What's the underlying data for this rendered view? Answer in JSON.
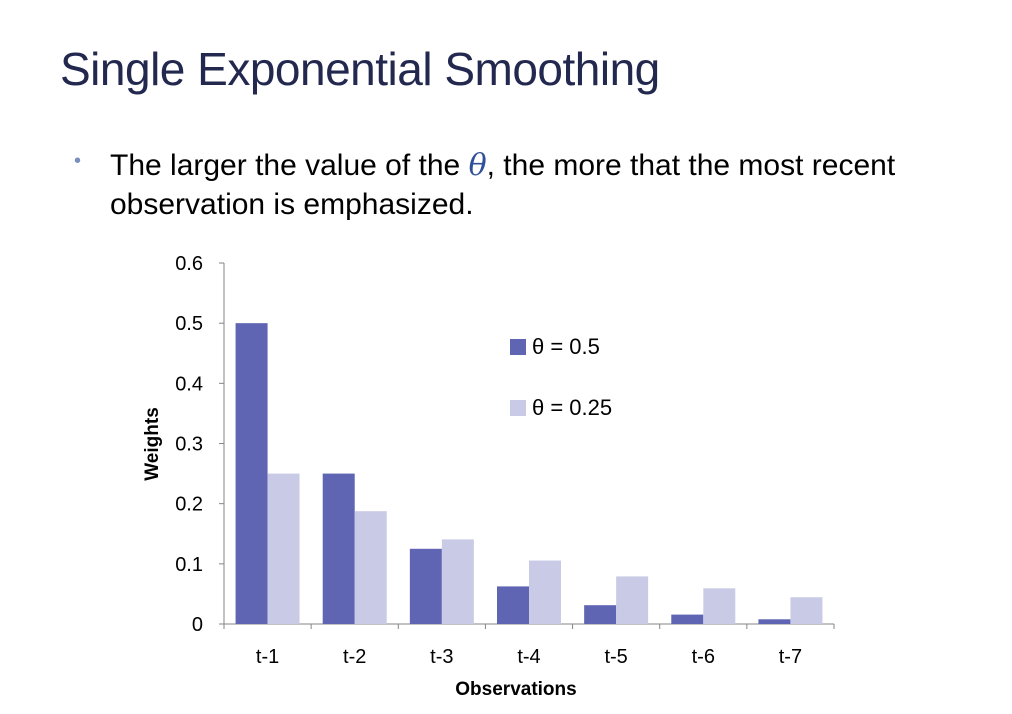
{
  "slide": {
    "title": "Single Exponential Smoothing",
    "bullet": {
      "text_before": "The larger the value of the ",
      "symbol": "θ",
      "text_after": ", the more that the most recent observation is emphasized."
    }
  },
  "chart_data": {
    "type": "bar",
    "categories": [
      "t-1",
      "t-2",
      "t-3",
      "t-4",
      "t-5",
      "t-6",
      "t-7"
    ],
    "series": [
      {
        "name": "θ = 0.5",
        "color": "#5f64b3",
        "values": [
          0.5,
          0.25,
          0.125,
          0.0625,
          0.03125,
          0.015625,
          0.0078125
        ]
      },
      {
        "name": "θ = 0.25",
        "color": "#c9cbe6",
        "values": [
          0.25,
          0.1875,
          0.140625,
          0.10546875,
          0.0791015625,
          0.059326171875,
          0.04449462890625
        ]
      }
    ],
    "xlabel": "Observations",
    "ylabel": "Weights",
    "ylim": [
      0,
      0.6
    ],
    "yticks": [
      0,
      0.1,
      0.2,
      0.3,
      0.4,
      0.5,
      0.6
    ],
    "ytick_labels": [
      "0",
      "0.1",
      "0.2",
      "0.3",
      "0.4",
      "0.5",
      "0.6"
    ],
    "grid": false,
    "legend_position": "upper-middle"
  }
}
